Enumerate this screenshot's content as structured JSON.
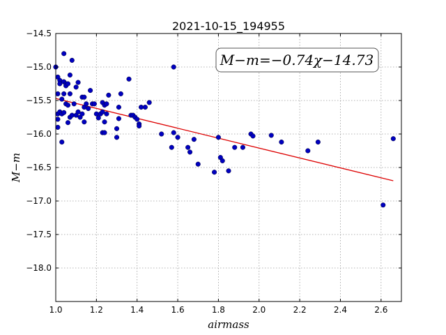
{
  "chart_data": {
    "type": "scatter",
    "title": "2021-10-15_194955",
    "xlabel": "airmass",
    "ylabel": "M−m",
    "xlim": [
      1.0,
      2.7
    ],
    "ylim": [
      -18.5,
      -14.5
    ],
    "y_inverted": true,
    "xticks": [
      1.0,
      1.2,
      1.4,
      1.6,
      1.8,
      2.0,
      2.2,
      2.4,
      2.6
    ],
    "xtick_labels": [
      "1.0",
      "1.2",
      "1.4",
      "1.6",
      "1.8",
      "2.0",
      "2.2",
      "2.4",
      "2.6"
    ],
    "yticks": [
      -14.5,
      -15.0,
      -15.5,
      -16.0,
      -16.5,
      -17.0,
      -17.5,
      -18.0
    ],
    "ytick_labels": [
      "−14.5",
      "−15.0",
      "−15.5",
      "−16.0",
      "−16.5",
      "−17.0",
      "−17.5",
      "−18.0"
    ],
    "grid": true,
    "annotation": "M−m=−0.74χ−14.73",
    "annotation_position": "top-right",
    "colors": {
      "points": "#0000c0",
      "fit_line": "#dd0000",
      "grid": "#9a9a9a"
    },
    "fit": {
      "slope": -0.74,
      "intercept": -14.73,
      "x_range": [
        1.0,
        2.66
      ]
    },
    "points": [
      [
        1.0,
        -15.0
      ],
      [
        1.01,
        -15.15
      ],
      [
        1.01,
        -15.4
      ],
      [
        1.01,
        -15.7
      ],
      [
        1.01,
        -15.78
      ],
      [
        1.01,
        -15.9
      ],
      [
        1.02,
        -15.2
      ],
      [
        1.02,
        -15.25
      ],
      [
        1.02,
        -15.67
      ],
      [
        1.03,
        -15.48
      ],
      [
        1.03,
        -15.7
      ],
      [
        1.03,
        -16.12
      ],
      [
        1.04,
        -14.8
      ],
      [
        1.04,
        -15.22
      ],
      [
        1.04,
        -15.4
      ],
      [
        1.04,
        -15.68
      ],
      [
        1.05,
        -15.25
      ],
      [
        1.05,
        -15.28
      ],
      [
        1.05,
        -15.55
      ],
      [
        1.06,
        -15.25
      ],
      [
        1.06,
        -15.57
      ],
      [
        1.06,
        -15.83
      ],
      [
        1.07,
        -15.12
      ],
      [
        1.07,
        -15.4
      ],
      [
        1.07,
        -15.75
      ],
      [
        1.08,
        -14.9
      ],
      [
        1.08,
        -15.72
      ],
      [
        1.09,
        -15.55
      ],
      [
        1.1,
        -15.3
      ],
      [
        1.1,
        -15.72
      ],
      [
        1.11,
        -15.23
      ],
      [
        1.11,
        -15.67
      ],
      [
        1.12,
        -15.75
      ],
      [
        1.13,
        -15.45
      ],
      [
        1.13,
        -15.7
      ],
      [
        1.14,
        -15.45
      ],
      [
        1.14,
        -15.6
      ],
      [
        1.14,
        -15.82
      ],
      [
        1.15,
        -15.55
      ],
      [
        1.16,
        -15.62
      ],
      [
        1.17,
        -15.35
      ],
      [
        1.18,
        -15.55
      ],
      [
        1.19,
        -15.55
      ],
      [
        1.2,
        -15.7
      ],
      [
        1.21,
        -15.76
      ],
      [
        1.22,
        -15.7
      ],
      [
        1.23,
        -15.53
      ],
      [
        1.23,
        -15.67
      ],
      [
        1.23,
        -15.98
      ],
      [
        1.24,
        -15.57
      ],
      [
        1.24,
        -15.82
      ],
      [
        1.24,
        -15.98
      ],
      [
        1.25,
        -15.55
      ],
      [
        1.25,
        -15.7
      ],
      [
        1.26,
        -15.42
      ],
      [
        1.3,
        -15.92
      ],
      [
        1.3,
        -16.05
      ],
      [
        1.31,
        -15.77
      ],
      [
        1.31,
        -15.6
      ],
      [
        1.32,
        -15.4
      ],
      [
        1.36,
        -15.18
      ],
      [
        1.37,
        -15.72
      ],
      [
        1.38,
        -15.72
      ],
      [
        1.39,
        -15.75
      ],
      [
        1.4,
        -15.78
      ],
      [
        1.41,
        -15.85
      ],
      [
        1.41,
        -15.88
      ],
      [
        1.42,
        -15.6
      ],
      [
        1.44,
        -15.6
      ],
      [
        1.46,
        -15.53
      ],
      [
        1.52,
        -16.0
      ],
      [
        1.57,
        -16.2
      ],
      [
        1.58,
        -15.0
      ],
      [
        1.58,
        -15.98
      ],
      [
        1.6,
        -16.05
      ],
      [
        1.65,
        -16.2
      ],
      [
        1.66,
        -16.27
      ],
      [
        1.68,
        -16.08
      ],
      [
        1.7,
        -16.45
      ],
      [
        1.78,
        -16.57
      ],
      [
        1.8,
        -16.05
      ],
      [
        1.81,
        -16.35
      ],
      [
        1.82,
        -16.4
      ],
      [
        1.85,
        -16.55
      ],
      [
        1.88,
        -16.2
      ],
      [
        1.92,
        -16.2
      ],
      [
        1.96,
        -16.0
      ],
      [
        1.97,
        -16.03
      ],
      [
        2.06,
        -16.02
      ],
      [
        2.11,
        -16.12
      ],
      [
        2.24,
        -16.25
      ],
      [
        2.29,
        -16.12
      ],
      [
        2.61,
        -17.06
      ],
      [
        2.66,
        -16.07
      ]
    ]
  }
}
